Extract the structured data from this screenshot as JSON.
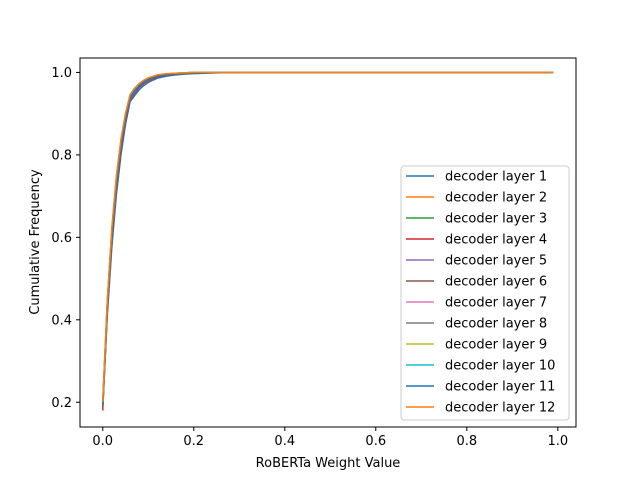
{
  "chart_data": {
    "type": "line",
    "title": "",
    "xlabel": "RoBERTa Weight Value",
    "ylabel": "Cumulative Frequency",
    "xlim": [
      -0.05,
      1.04
    ],
    "ylim": [
      0.14,
      1.035
    ],
    "xticks": [
      0.0,
      0.2,
      0.4,
      0.6,
      0.8,
      1.0
    ],
    "xtick_labels": [
      "0.0",
      "0.2",
      "0.4",
      "0.6",
      "0.8",
      "1.0"
    ],
    "yticks": [
      0.2,
      0.4,
      0.6,
      0.8,
      1.0
    ],
    "ytick_labels": [
      "0.2",
      "0.4",
      "0.6",
      "0.8",
      "1.0"
    ],
    "grid": false,
    "legend_position": "lower right",
    "x": [
      0.0,
      0.01,
      0.02,
      0.03,
      0.04,
      0.05,
      0.06,
      0.07,
      0.08,
      0.09,
      0.1,
      0.12,
      0.14,
      0.16,
      0.18,
      0.2,
      0.25,
      0.3,
      0.4,
      0.6,
      0.8,
      0.99
    ],
    "series": [
      {
        "name": "decoder layer 1",
        "color": "#1f77b4",
        "values": [
          0.19,
          0.41,
          0.577,
          0.704,
          0.8,
          0.874,
          0.929,
          0.944,
          0.958,
          0.968,
          0.976,
          0.986,
          0.991,
          0.994,
          0.996,
          0.997,
          0.999,
          1.0,
          1.0,
          1.0,
          1.0,
          1.0
        ]
      },
      {
        "name": "decoder layer 2",
        "color": "#ff7f0e",
        "values": [
          0.2,
          0.445,
          0.62,
          0.745,
          0.835,
          0.898,
          0.944,
          0.96,
          0.972,
          0.98,
          0.986,
          0.993,
          0.996,
          0.998,
          0.999,
          1.0,
          1.0,
          1.0,
          1.0,
          1.0,
          1.0,
          1.0
        ]
      },
      {
        "name": "decoder layer 3",
        "color": "#2ca02c",
        "values": [
          0.195,
          0.43,
          0.602,
          0.727,
          0.818,
          0.885,
          0.934,
          0.951,
          0.964,
          0.974,
          0.981,
          0.99,
          0.994,
          0.997,
          0.998,
          0.999,
          1.0,
          1.0,
          1.0,
          1.0,
          1.0,
          1.0
        ]
      },
      {
        "name": "decoder layer 4",
        "color": "#d62728",
        "values": [
          0.18,
          0.42,
          0.596,
          0.723,
          0.815,
          0.883,
          0.933,
          0.95,
          0.963,
          0.973,
          0.98,
          0.989,
          0.994,
          0.996,
          0.998,
          0.999,
          1.0,
          1.0,
          1.0,
          1.0,
          1.0,
          1.0
        ]
      },
      {
        "name": "decoder layer 5",
        "color": "#9467bd",
        "values": [
          0.192,
          0.433,
          0.606,
          0.731,
          0.822,
          0.888,
          0.936,
          0.953,
          0.966,
          0.975,
          0.982,
          0.991,
          0.995,
          0.997,
          0.998,
          0.999,
          1.0,
          1.0,
          1.0,
          1.0,
          1.0,
          1.0
        ]
      },
      {
        "name": "decoder layer 6",
        "color": "#8c564b",
        "values": [
          0.188,
          0.428,
          0.603,
          0.729,
          0.82,
          0.887,
          0.935,
          0.952,
          0.965,
          0.975,
          0.982,
          0.99,
          0.995,
          0.997,
          0.998,
          0.999,
          1.0,
          1.0,
          1.0,
          1.0,
          1.0,
          1.0
        ]
      },
      {
        "name": "decoder layer 7",
        "color": "#e377c2",
        "values": [
          0.194,
          0.437,
          0.611,
          0.736,
          0.826,
          0.891,
          0.939,
          0.955,
          0.968,
          0.977,
          0.984,
          0.992,
          0.995,
          0.998,
          0.999,
          1.0,
          1.0,
          1.0,
          1.0,
          1.0,
          1.0,
          1.0
        ]
      },
      {
        "name": "decoder layer 8",
        "color": "#7f7f7f",
        "values": [
          0.191,
          0.434,
          0.608,
          0.733,
          0.824,
          0.889,
          0.937,
          0.954,
          0.967,
          0.976,
          0.983,
          0.991,
          0.995,
          0.997,
          0.998,
          0.999,
          1.0,
          1.0,
          1.0,
          1.0,
          1.0,
          1.0
        ]
      },
      {
        "name": "decoder layer 9",
        "color": "#bcbd22",
        "values": [
          0.196,
          0.44,
          0.614,
          0.739,
          0.829,
          0.893,
          0.94,
          0.957,
          0.969,
          0.978,
          0.985,
          0.992,
          0.996,
          0.998,
          0.999,
          1.0,
          1.0,
          1.0,
          1.0,
          1.0,
          1.0,
          1.0
        ]
      },
      {
        "name": "decoder layer 10",
        "color": "#17becf",
        "values": [
          0.198,
          0.442,
          0.617,
          0.742,
          0.832,
          0.896,
          0.942,
          0.958,
          0.97,
          0.979,
          0.985,
          0.993,
          0.996,
          0.998,
          0.999,
          1.0,
          1.0,
          1.0,
          1.0,
          1.0,
          1.0,
          1.0
        ]
      },
      {
        "name": "decoder layer 11",
        "color": "#1f77b4",
        "values": [
          0.193,
          0.436,
          0.61,
          0.735,
          0.825,
          0.89,
          0.938,
          0.955,
          0.967,
          0.977,
          0.984,
          0.991,
          0.995,
          0.997,
          0.998,
          0.999,
          1.0,
          1.0,
          1.0,
          1.0,
          1.0,
          1.0
        ]
      },
      {
        "name": "decoder layer 12",
        "color": "#ff7f0e",
        "values": [
          0.201,
          0.448,
          0.624,
          0.749,
          0.838,
          0.901,
          0.946,
          0.962,
          0.973,
          0.981,
          0.987,
          0.994,
          0.997,
          0.998,
          0.999,
          1.0,
          1.0,
          1.0,
          1.0,
          1.0,
          1.0,
          1.0
        ]
      }
    ]
  }
}
